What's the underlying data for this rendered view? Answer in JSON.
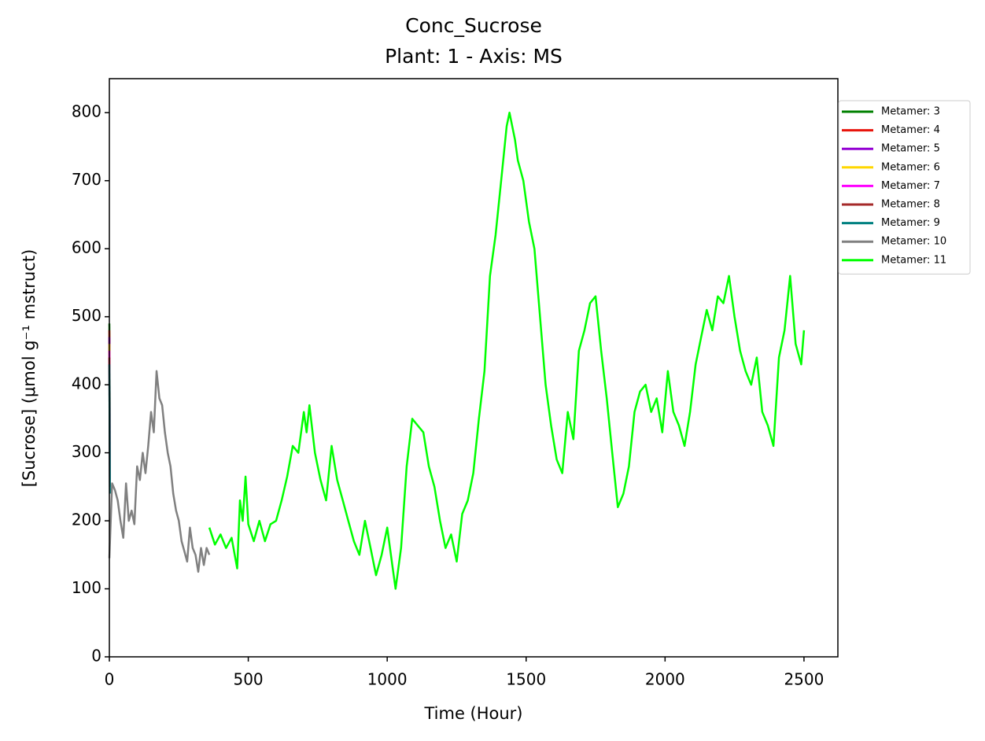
{
  "chart_data": {
    "type": "line",
    "title": "Conc_Sucrose",
    "subtitle": "Plant: 1 - Axis: MS",
    "x_label": "Time (Hour)",
    "y_label": "[Sucrose] (μmol g⁻¹ mstruct)",
    "xlim": [
      0,
      2622
    ],
    "ylim": [
      0,
      850
    ],
    "xticks": [
      0,
      500,
      1000,
      1500,
      2000,
      2500
    ],
    "yticks": [
      0,
      100,
      200,
      300,
      400,
      500,
      600,
      700,
      800
    ],
    "grid": false,
    "legend": "outside-right",
    "series": [
      {
        "name": "Metamer: 3",
        "color": "#008000",
        "x": [
          0,
          2
        ],
        "values": [
          490,
          300
        ]
      },
      {
        "name": "Metamer: 4",
        "color": "#e8140c",
        "x": [
          0,
          2
        ],
        "values": [
          480,
          290
        ]
      },
      {
        "name": "Metamer: 5",
        "color": "#9400d3",
        "x": [
          0,
          2
        ],
        "values": [
          470,
          280
        ]
      },
      {
        "name": "Metamer: 6",
        "color": "#ffd700",
        "x": [
          0,
          2
        ],
        "values": [
          460,
          270
        ]
      },
      {
        "name": "Metamer: 7",
        "color": "#ff00ff",
        "x": [
          0,
          2
        ],
        "values": [
          450,
          260
        ]
      },
      {
        "name": "Metamer: 8",
        "color": "#a52a2a",
        "x": [
          0,
          2
        ],
        "values": [
          440,
          250
        ]
      },
      {
        "name": "Metamer: 9",
        "color": "#008080",
        "x": [
          0,
          2
        ],
        "values": [
          430,
          240
        ]
      },
      {
        "name": "Metamer: 10",
        "color": "#808080",
        "x": [
          0,
          10,
          20,
          30,
          40,
          50,
          60,
          70,
          80,
          90,
          100,
          110,
          120,
          130,
          140,
          150,
          160,
          170,
          180,
          190,
          200,
          210,
          220,
          230,
          240,
          250,
          260,
          270,
          280,
          290,
          300,
          310,
          320,
          330,
          340,
          350,
          360
        ],
        "values": [
          145,
          255,
          245,
          230,
          200,
          175,
          255,
          200,
          215,
          195,
          280,
          260,
          300,
          270,
          310,
          360,
          330,
          420,
          380,
          370,
          330,
          300,
          280,
          240,
          215,
          200,
          170,
          155,
          140,
          190,
          160,
          150,
          125,
          160,
          135,
          160,
          150
        ]
      },
      {
        "name": "Metamer: 11",
        "color": "#00ff00",
        "x": [
          360,
          380,
          400,
          420,
          440,
          460,
          470,
          480,
          490,
          500,
          520,
          540,
          560,
          580,
          600,
          620,
          640,
          660,
          680,
          700,
          710,
          720,
          740,
          760,
          780,
          800,
          820,
          840,
          860,
          880,
          900,
          920,
          940,
          960,
          980,
          1000,
          1020,
          1030,
          1050,
          1070,
          1090,
          1110,
          1130,
          1150,
          1170,
          1190,
          1210,
          1230,
          1250,
          1270,
          1290,
          1310,
          1330,
          1350,
          1370,
          1390,
          1410,
          1430,
          1440,
          1450,
          1460,
          1470,
          1490,
          1510,
          1530,
          1550,
          1570,
          1590,
          1610,
          1630,
          1650,
          1670,
          1690,
          1710,
          1730,
          1750,
          1770,
          1790,
          1810,
          1830,
          1850,
          1870,
          1890,
          1910,
          1930,
          1950,
          1970,
          1990,
          2010,
          2030,
          2050,
          2070,
          2090,
          2110,
          2130,
          2150,
          2170,
          2190,
          2210,
          2230,
          2250,
          2270,
          2290,
          2310,
          2330,
          2350,
          2370,
          2390,
          2410,
          2430,
          2450,
          2470,
          2490,
          2500
        ],
        "values": [
          190,
          165,
          180,
          160,
          175,
          130,
          230,
          200,
          265,
          195,
          170,
          200,
          170,
          195,
          200,
          230,
          265,
          310,
          300,
          360,
          330,
          370,
          300,
          260,
          230,
          310,
          260,
          230,
          200,
          170,
          150,
          200,
          160,
          120,
          150,
          190,
          130,
          100,
          160,
          280,
          350,
          340,
          330,
          280,
          250,
          200,
          160,
          180,
          140,
          210,
          230,
          270,
          350,
          420,
          560,
          620,
          700,
          780,
          800,
          780,
          760,
          730,
          700,
          640,
          600,
          500,
          400,
          340,
          290,
          270,
          360,
          320,
          450,
          480,
          520,
          530,
          450,
          380,
          300,
          220,
          240,
          280,
          360,
          390,
          400,
          360,
          380,
          330,
          420,
          360,
          340,
          310,
          360,
          430,
          470,
          510,
          480,
          530,
          520,
          560,
          500,
          450,
          420,
          400,
          440,
          360,
          340,
          310,
          440,
          480,
          560,
          460,
          430,
          480
        ]
      }
    ]
  }
}
